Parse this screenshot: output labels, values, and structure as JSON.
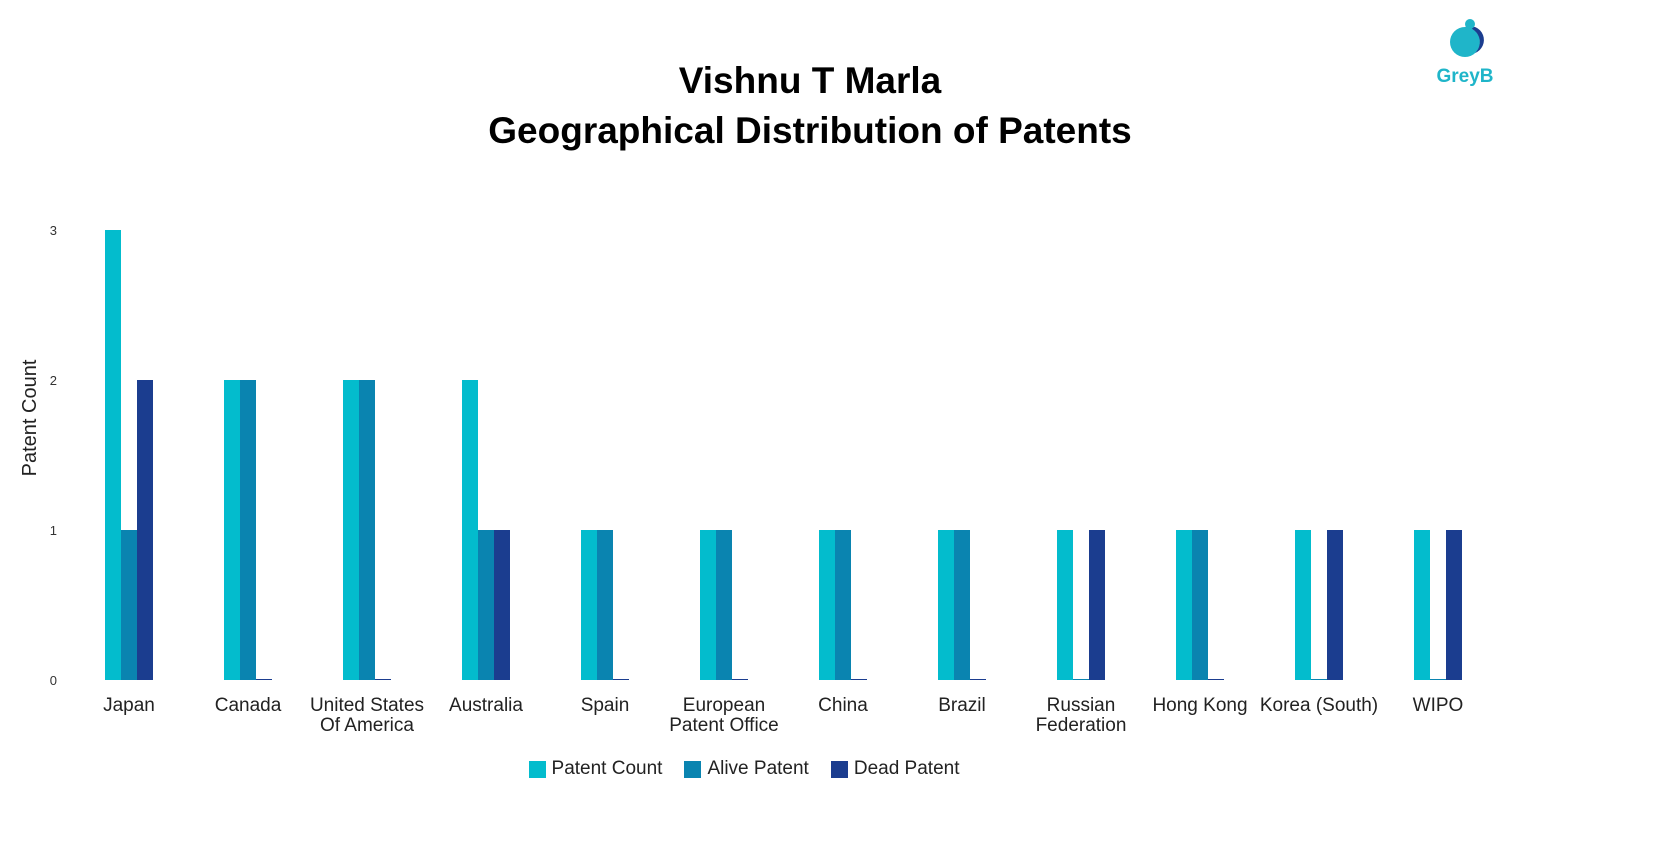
{
  "brand": {
    "logo_text": "GreyB"
  },
  "chart_data": {
    "type": "bar",
    "title": "Vishnu T Marla",
    "subtitle": "Geographical Distribution of Patents",
    "ylabel": "Patent Count",
    "xlabel": "",
    "ylim": [
      0,
      3
    ],
    "yticks": [
      0,
      1,
      2,
      3
    ],
    "categories": [
      [
        "Japan"
      ],
      [
        "Canada"
      ],
      [
        "United States",
        "Of America"
      ],
      [
        "Australia"
      ],
      [
        "Spain"
      ],
      [
        "European",
        "Patent Office"
      ],
      [
        "China"
      ],
      [
        "Brazil"
      ],
      [
        "Russian",
        "Federation"
      ],
      [
        "Hong Kong"
      ],
      [
        "Korea (South)"
      ],
      [
        "WIPO"
      ]
    ],
    "series": [
      {
        "name": "Patent Count",
        "color": "#03bccd",
        "values": [
          3,
          2,
          2,
          2,
          1,
          1,
          1,
          1,
          1,
          1,
          1,
          1
        ]
      },
      {
        "name": "Alive Patent",
        "color": "#0a84b0",
        "values": [
          1,
          2,
          2,
          1,
          1,
          1,
          1,
          1,
          0,
          1,
          0,
          0
        ]
      },
      {
        "name": "Dead Patent",
        "color": "#1b3d8f",
        "values": [
          2,
          0,
          0,
          1,
          0,
          0,
          0,
          0,
          1,
          0,
          1,
          1
        ]
      }
    ],
    "legend_position": "bottom",
    "grid": false
  }
}
